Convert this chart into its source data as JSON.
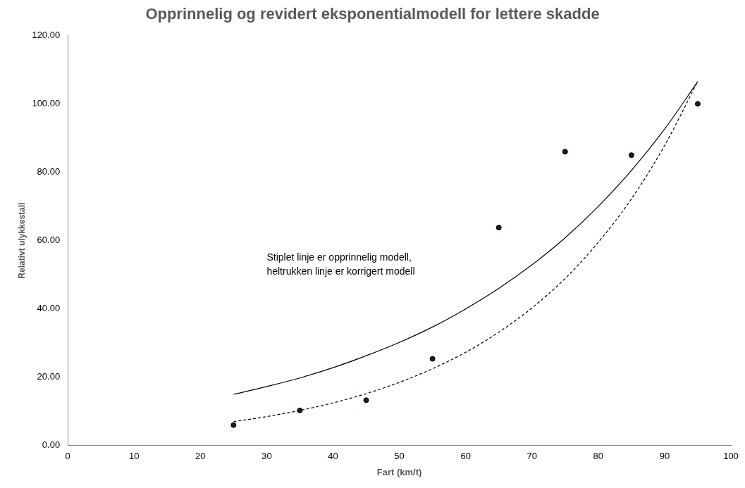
{
  "chart_data": {
    "type": "scatter",
    "title": "Opprinnelig og revidert eksponentialmodell for lettere skadde",
    "xlabel": "Fart (km/t)",
    "ylabel": "Relativt ulykkestall",
    "xlim": [
      0,
      100
    ],
    "xticks": [
      0,
      10,
      20,
      30,
      40,
      50,
      60,
      70,
      80,
      90,
      100
    ],
    "ylim": [
      0,
      120
    ],
    "yticks": [
      {
        "value": 0,
        "label": "0.00"
      },
      {
        "value": 20,
        "label": "20.00"
      },
      {
        "value": 40,
        "label": "40.00"
      },
      {
        "value": 60,
        "label": "60.00"
      },
      {
        "value": 80,
        "label": "80.00"
      },
      {
        "value": 100,
        "label": "100.00"
      },
      {
        "value": 120,
        "label": "120.00"
      }
    ],
    "grid": false,
    "legend": false,
    "annotations": [
      "Stiplet linje er opprinnelig modell,\nheltrukken linje er korrigert modell"
    ],
    "series": [
      {
        "type": "line",
        "color": "#000000",
        "marker": "none",
        "line_style": "solid",
        "x": [
          25,
          30,
          35,
          40,
          45,
          50,
          55,
          60,
          65,
          70,
          75,
          80,
          85,
          90,
          95
        ],
        "values": [
          15,
          17.3,
          19.8,
          22.8,
          26.3,
          30.2,
          34.7,
          40,
          46,
          52.9,
          60.8,
          70,
          80.5,
          92.6,
          106.5
        ]
      },
      {
        "type": "line",
        "color": "#000000",
        "marker": "none",
        "line_style": "dashed",
        "x": [
          25,
          30,
          35,
          40,
          45,
          50,
          55,
          60,
          65,
          70,
          75,
          80,
          85,
          90,
          95
        ],
        "values": [
          7,
          8.5,
          10.3,
          12.5,
          15.2,
          18.5,
          22.5,
          27.3,
          33.2,
          40.3,
          48.9,
          59.5,
          72.2,
          87.8,
          106.6
        ]
      },
      {
        "type": "scatter",
        "color": "#0d1b3e",
        "marker": "circle",
        "x": [
          25,
          35,
          45,
          55,
          65,
          75,
          85,
          95
        ],
        "values": [
          6,
          10.3,
          13.3,
          25.4,
          63.8,
          86,
          85,
          100
        ]
      }
    ]
  }
}
